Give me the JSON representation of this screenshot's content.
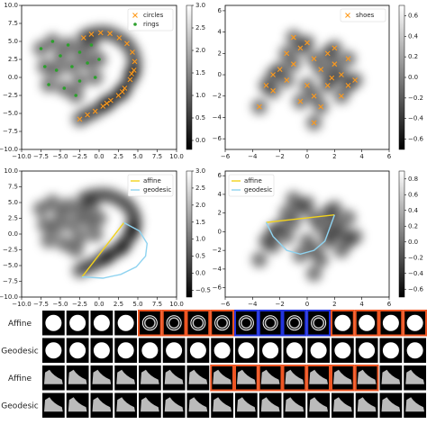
{
  "chart_data": [
    {
      "type": "scatter",
      "legend": "upper right",
      "xlim": [
        -10,
        10
      ],
      "ylim": [
        -10,
        10
      ],
      "xticks": [
        {
          "value": -10,
          "label": "−10.0"
        },
        {
          "value": -7.5,
          "label": "−7.5"
        },
        {
          "value": -5,
          "label": "−5.0"
        },
        {
          "value": -2.5,
          "label": "−2.5"
        },
        {
          "value": 0,
          "label": "0.0"
        },
        2.5,
        {
          "value": 5,
          "label": "5.0"
        },
        7.5,
        {
          "value": 10,
          "label": "10.0"
        }
      ],
      "yticks": [
        {
          "value": -10,
          "label": "−10.0"
        },
        {
          "value": -7.5,
          "label": "−7.5"
        },
        {
          "value": -5,
          "label": "−5.0"
        },
        {
          "value": -2.5,
          "label": "−2.5"
        },
        {
          "value": 0,
          "label": "0.0"
        },
        2.5,
        {
          "value": 5,
          "label": "5.0"
        },
        7.5,
        {
          "value": 10,
          "label": "10.0"
        }
      ],
      "clim": [
        -0.2,
        3.0
      ],
      "cticks": [
        {
          "value": 0,
          "label": "0.0"
        },
        0.5,
        {
          "value": 1,
          "label": "1.0"
        },
        1.5,
        {
          "value": 2,
          "label": "2.0"
        },
        2.5,
        {
          "value": 3,
          "label": "3.0"
        }
      ],
      "series": [
        {
          "name": "circles",
          "color": "#ff9a1a",
          "marker": "x",
          "x": [
            -2.5,
            -1.5,
            -0.5,
            0.5,
            1.5,
            2.5,
            3.3,
            4,
            4.5,
            4.6,
            4.3,
            3.6,
            2.6,
            1.4,
            0.2,
            -1,
            -2,
            3,
            4.2,
            1
          ],
          "values": [
            -5.8,
            -5.2,
            -4.7,
            -4,
            -3.2,
            -2.5,
            -1.5,
            -0.3,
            1,
            2.2,
            3.5,
            4.7,
            5.5,
            6.1,
            6.2,
            6,
            5.5,
            -2,
            0.5,
            -3.6
          ]
        },
        {
          "name": "rings",
          "color": "#2ca02c",
          "marker": "o",
          "x": [
            -7.5,
            -6,
            -4,
            -2.5,
            -7,
            -5.5,
            -3.5,
            -1.5,
            -6.5,
            -4.5,
            -2.5,
            -0.5,
            -5,
            -3,
            0,
            -1
          ],
          "values": [
            4,
            5,
            4.5,
            3.5,
            1.5,
            1,
            1.5,
            2,
            -1,
            -1.5,
            -0.5,
            0,
            3,
            -2.5,
            2.5,
            4.5
          ]
        }
      ]
    },
    {
      "type": "scatter",
      "legend": "upper right",
      "xlim": [
        -6,
        6
      ],
      "ylim": [
        -7,
        6.5
      ],
      "xticks": [
        {
          "value": -6,
          "label": "−6"
        },
        {
          "value": -4,
          "label": "−4"
        },
        {
          "value": -2,
          "label": "−2"
        },
        0,
        2,
        4,
        6
      ],
      "yticks": [
        {
          "value": -6,
          "label": "−6"
        },
        {
          "value": -4,
          "label": "−4"
        },
        {
          "value": -2,
          "label": "−2"
        },
        0,
        2,
        4,
        6
      ],
      "clim": [
        -0.7,
        0.7
      ],
      "cticks": [
        {
          "value": -0.6,
          "label": "−0.6"
        },
        {
          "value": -0.4,
          "label": "−0.4"
        },
        {
          "value": -0.2,
          "label": "−0.2"
        },
        {
          "value": 0,
          "label": "0.0"
        },
        0.2,
        0.4,
        0.6
      ],
      "series": [
        {
          "name": "shoes",
          "color": "#ff9a1a",
          "marker": "x",
          "x": [
            -3.5,
            -3,
            -2.5,
            -2,
            -1.5,
            -1,
            -0.5,
            0,
            -1,
            0.5,
            1,
            1.5,
            2,
            2.5,
            3,
            1.5,
            2.5,
            0.5,
            0,
            -0.5,
            1,
            3.5,
            2,
            -2.5,
            0.5,
            -1.5,
            3,
            1.8
          ],
          "values": [
            -3,
            -1,
            0,
            0.5,
            -0.5,
            1,
            2.5,
            3,
            3.5,
            1.5,
            0.5,
            2,
            1,
            0,
            1.5,
            -1,
            -2,
            -2,
            -1,
            -2.5,
            -3,
            -0.5,
            2.5,
            -1.5,
            -4.5,
            2,
            -1,
            -0.3
          ]
        }
      ]
    },
    {
      "type": "line",
      "legend": "upper right",
      "xlim": [
        -10,
        10
      ],
      "ylim": [
        -10,
        10
      ],
      "xticks": [
        {
          "value": -10,
          "label": "−10.0"
        },
        {
          "value": -7.5,
          "label": "−7.5"
        },
        {
          "value": -5,
          "label": "−5.0"
        },
        {
          "value": -2.5,
          "label": "−2.5"
        },
        {
          "value": 0,
          "label": "0.0"
        },
        2.5,
        {
          "value": 5,
          "label": "5.0"
        },
        7.5,
        {
          "value": 10,
          "label": "10.0"
        }
      ],
      "yticks": [
        {
          "value": -10,
          "label": "−10.0"
        },
        {
          "value": -7.5,
          "label": "−7.5"
        },
        {
          "value": -5,
          "label": "−5.0"
        },
        {
          "value": -2.5,
          "label": "−2.5"
        },
        {
          "value": 0,
          "label": "0.0"
        },
        2.5,
        {
          "value": 5,
          "label": "5.0"
        },
        7.5,
        {
          "value": 10,
          "label": "10.0"
        }
      ],
      "clim": [
        -0.7,
        3.0
      ],
      "cticks": [
        {
          "value": -0.5,
          "label": "−0.5"
        },
        {
          "value": 0,
          "label": "0.0"
        },
        0.5,
        {
          "value": 1,
          "label": "1.0"
        },
        1.5,
        {
          "value": 2,
          "label": "2.0"
        },
        2.5,
        {
          "value": 3,
          "label": "3.0"
        }
      ],
      "series": [
        {
          "name": "affine",
          "color": "#f2d21b",
          "x": [
            -2.2,
            3.2
          ],
          "values": [
            -6.8,
            1.8
          ]
        },
        {
          "name": "geodesic",
          "color": "#8fd3f0",
          "x": [
            3.2,
            5.2,
            6.2,
            6,
            4.8,
            2.8,
            0.5,
            -2.2
          ],
          "values": [
            1.8,
            0.5,
            -1.5,
            -3.5,
            -5.2,
            -6.4,
            -7,
            -6.8
          ]
        }
      ]
    },
    {
      "type": "line",
      "legend": "upper left",
      "xlim": [
        -6,
        6
      ],
      "ylim": [
        -7,
        6.5
      ],
      "xticks": [
        {
          "value": -6,
          "label": "−6"
        },
        {
          "value": -4,
          "label": "−4"
        },
        {
          "value": -2,
          "label": "−2"
        },
        0,
        2,
        4,
        6
      ],
      "yticks": [
        {
          "value": -6,
          "label": "−6"
        },
        {
          "value": -4,
          "label": "−4"
        },
        {
          "value": -2,
          "label": "−2"
        },
        0,
        2,
        4,
        6
      ],
      "clim": [
        -0.7,
        0.9
      ],
      "cticks": [
        {
          "value": -0.6,
          "label": "−0.6"
        },
        {
          "value": -0.4,
          "label": "−0.4"
        },
        {
          "value": -0.2,
          "label": "−0.2"
        },
        {
          "value": 0,
          "label": "0.0"
        },
        0.2,
        0.4,
        0.6,
        0.8
      ],
      "series": [
        {
          "name": "affine",
          "color": "#f2d21b",
          "x": [
            -3,
            2
          ],
          "values": [
            1,
            1.8
          ]
        },
        {
          "name": "geodesic",
          "color": "#8fd3f0",
          "x": [
            -3,
            -2.5,
            -1.5,
            -0.5,
            0.5,
            1.3,
            2
          ],
          "values": [
            1,
            -0.5,
            -2,
            -2.4,
            -2,
            -1,
            1.8
          ]
        }
      ]
    }
  ],
  "strip": {
    "rows": [
      {
        "label": "Affine"
      },
      {
        "label": "Geodesic"
      },
      {
        "label": "Affine"
      },
      {
        "label": "Geodesic"
      }
    ]
  }
}
